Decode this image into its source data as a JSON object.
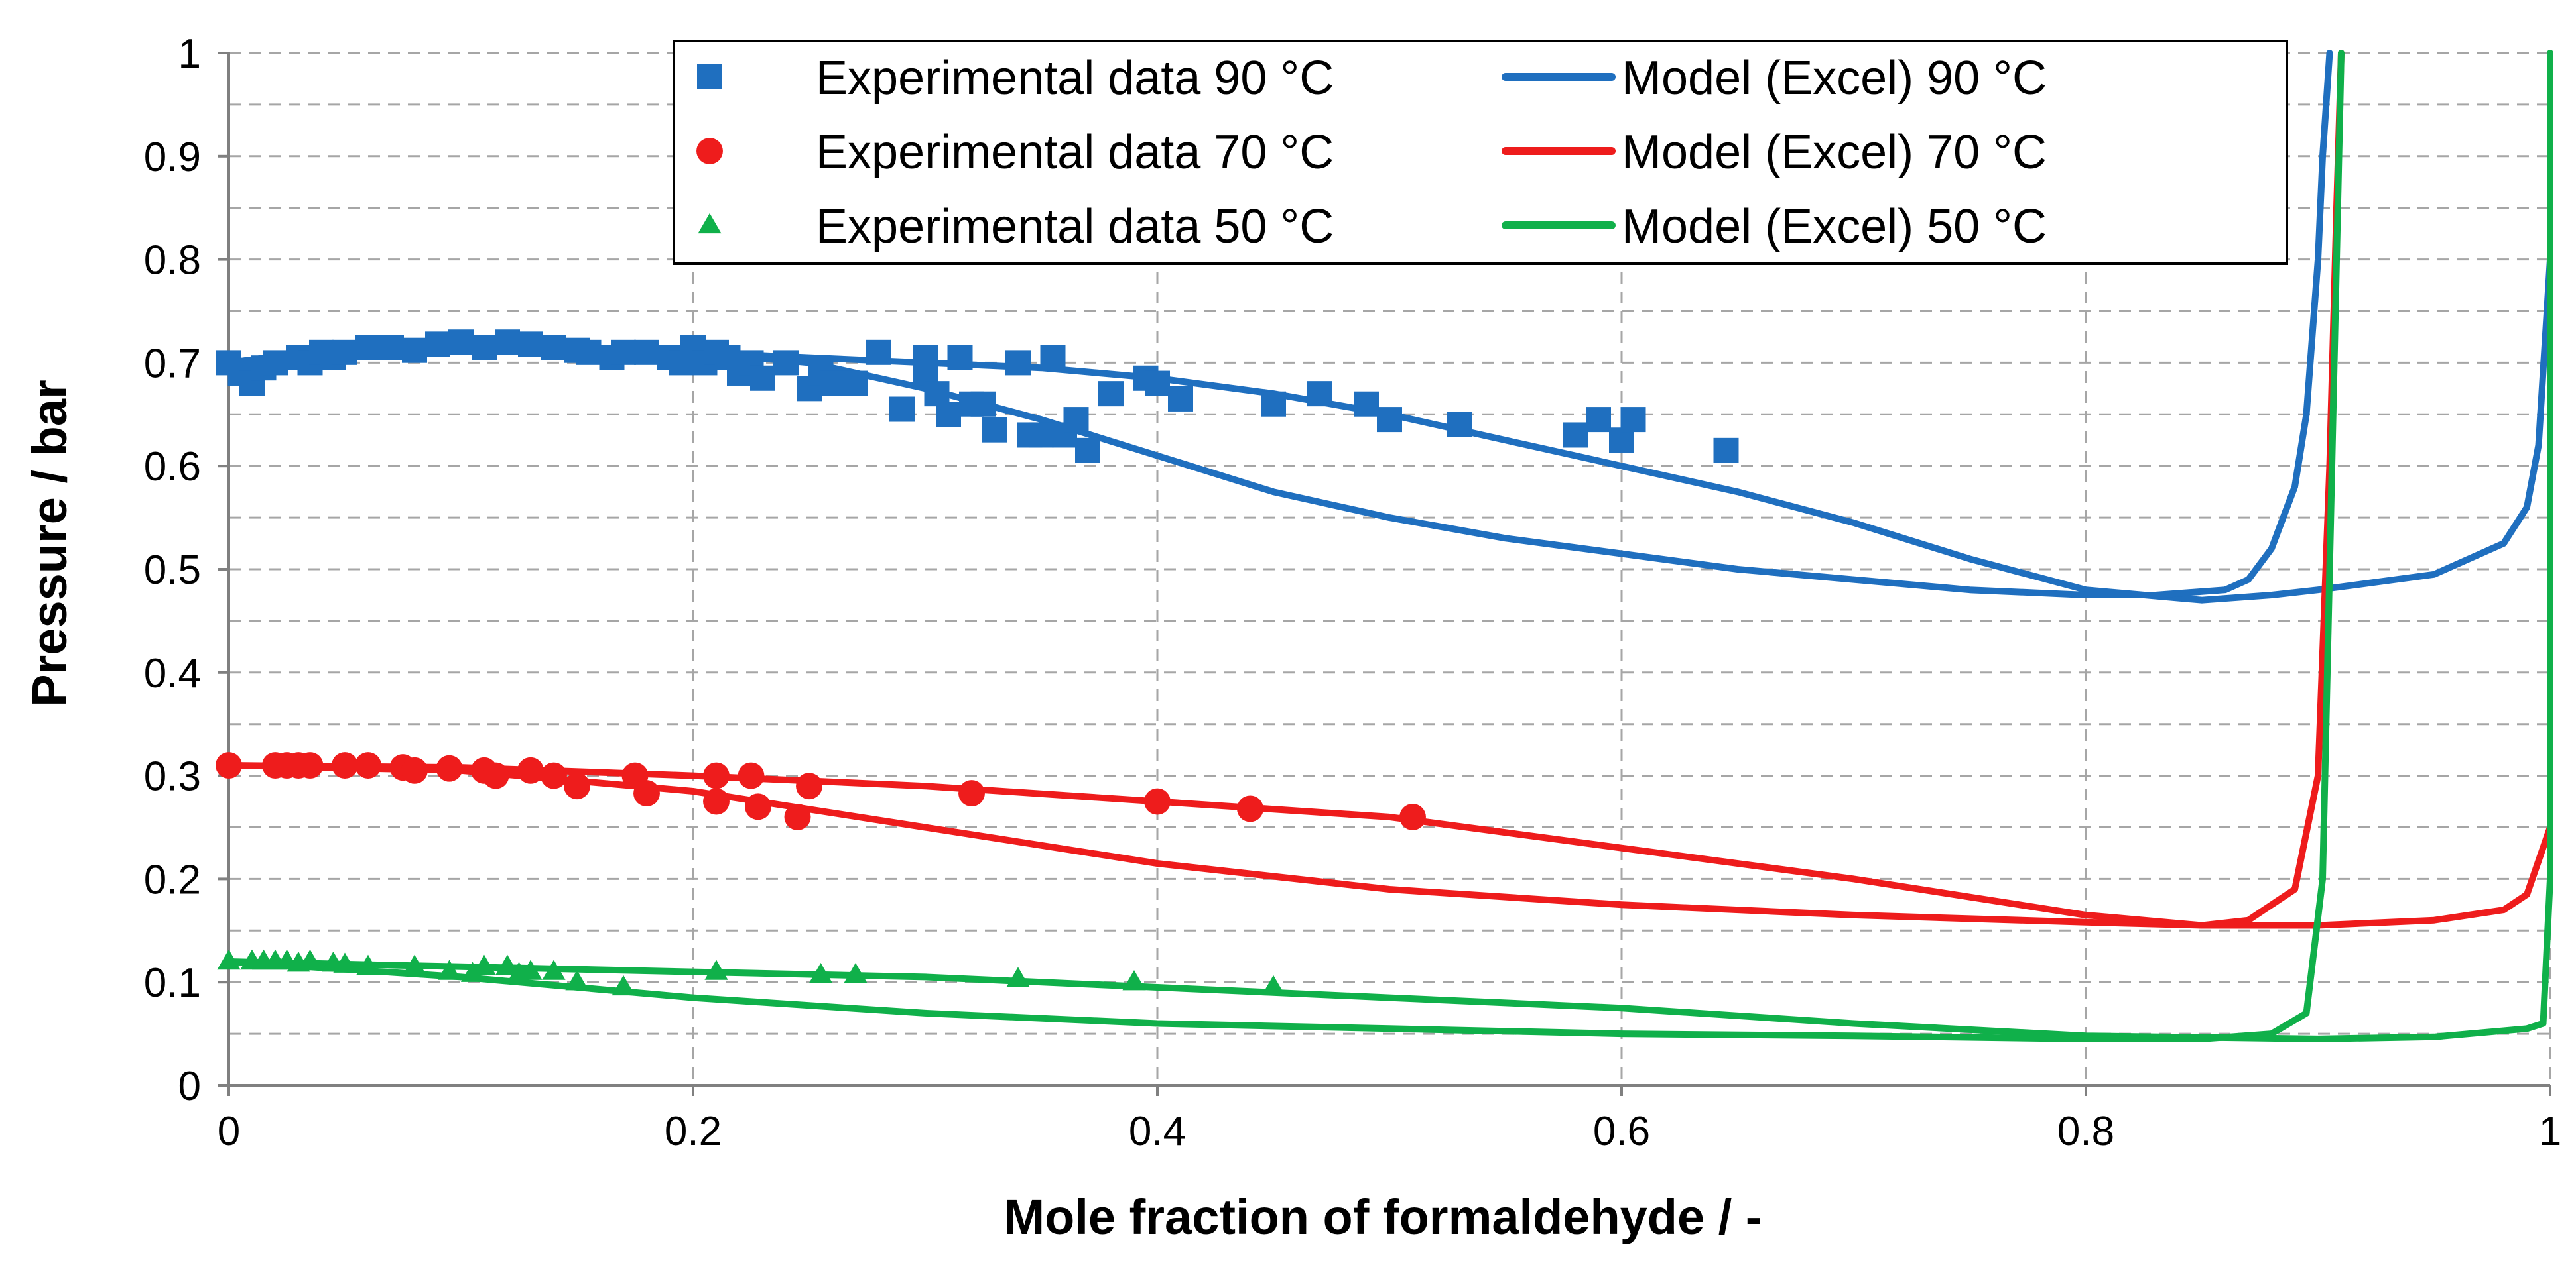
{
  "chart_data": {
    "type": "scatter",
    "title": "",
    "xlabel": "Mole fraction of formaldehyde / -",
    "ylabel": "Pressure  /  bar",
    "xlim": [
      0,
      1
    ],
    "ylim": [
      0,
      1
    ],
    "x_ticks": [
      0,
      0.2,
      0.4,
      0.6,
      0.8,
      1
    ],
    "x_tick_labels": [
      "0",
      "0.2",
      "0.4",
      "0.6",
      "0.8",
      "1"
    ],
    "y_ticks": [
      0,
      0.1,
      0.2,
      0.3,
      0.4,
      0.5,
      0.6,
      0.7,
      0.8,
      0.9,
      1
    ],
    "y_tick_labels": [
      "0",
      "0.1",
      "0.2",
      "0.3",
      "0.4",
      "0.5",
      "0.6",
      "0.7",
      "0.8",
      "0.9",
      "1"
    ],
    "grid": {
      "major": true,
      "minor_y": true,
      "style": "dashed"
    },
    "legend_position": "top-center",
    "colors": {
      "blue": "#1f6fbf",
      "red": "#ee1c1c",
      "green": "#10b04a",
      "grid": "#a6a6a6"
    },
    "series": [
      {
        "name": "Experimental data 90 °C",
        "kind": "scatter",
        "marker": "square",
        "color": "#1f6fbf",
        "x": [
          0.0,
          0.005,
          0.01,
          0.015,
          0.02,
          0.03,
          0.035,
          0.04,
          0.045,
          0.05,
          0.06,
          0.07,
          0.08,
          0.09,
          0.1,
          0.11,
          0.12,
          0.13,
          0.14,
          0.15,
          0.155,
          0.165,
          0.17,
          0.18,
          0.19,
          0.195,
          0.2,
          0.205,
          0.21,
          0.215,
          0.22,
          0.225,
          0.23,
          0.24,
          0.25,
          0.255,
          0.26,
          0.27,
          0.28,
          0.29,
          0.3,
          0.3,
          0.305,
          0.31,
          0.315,
          0.32,
          0.325,
          0.33,
          0.34,
          0.345,
          0.35,
          0.355,
          0.36,
          0.365,
          0.37,
          0.38,
          0.395,
          0.4,
          0.41,
          0.45,
          0.47,
          0.49,
          0.5,
          0.53,
          0.58,
          0.59,
          0.6,
          0.605,
          0.645
        ],
        "y": [
          0.7,
          0.69,
          0.68,
          0.695,
          0.7,
          0.705,
          0.7,
          0.71,
          0.705,
          0.71,
          0.715,
          0.715,
          0.712,
          0.718,
          0.72,
          0.715,
          0.72,
          0.718,
          0.715,
          0.712,
          0.71,
          0.705,
          0.71,
          0.71,
          0.705,
          0.7,
          0.715,
          0.7,
          0.71,
          0.705,
          0.69,
          0.7,
          0.685,
          0.7,
          0.675,
          0.69,
          0.68,
          0.68,
          0.71,
          0.655,
          0.69,
          0.705,
          0.67,
          0.65,
          0.705,
          0.66,
          0.66,
          0.635,
          0.7,
          0.63,
          0.63,
          0.705,
          0.63,
          0.645,
          0.615,
          0.67,
          0.685,
          0.68,
          0.665,
          0.66,
          0.67,
          0.66,
          0.645,
          0.64,
          0.63,
          0.645,
          0.625,
          0.645,
          0.615
        ]
      },
      {
        "name": "Experimental data 70 °C",
        "kind": "scatter",
        "marker": "circle",
        "color": "#ee1c1c",
        "x": [
          0.0,
          0.02,
          0.025,
          0.03,
          0.035,
          0.05,
          0.06,
          0.075,
          0.08,
          0.095,
          0.11,
          0.115,
          0.13,
          0.14,
          0.15,
          0.175,
          0.18,
          0.21,
          0.21,
          0.225,
          0.228,
          0.245,
          0.25,
          0.32,
          0.4,
          0.44,
          0.51
        ],
        "y": [
          0.31,
          0.31,
          0.31,
          0.31,
          0.31,
          0.31,
          0.31,
          0.308,
          0.305,
          0.307,
          0.305,
          0.3,
          0.305,
          0.3,
          0.29,
          0.3,
          0.283,
          0.3,
          0.275,
          0.3,
          0.27,
          0.26,
          0.29,
          0.283,
          0.275,
          0.268,
          0.26
        ]
      },
      {
        "name": "Experimental data 50 °C",
        "kind": "scatter",
        "marker": "triangle",
        "color": "#10b04a",
        "x": [
          0.0,
          0.01,
          0.015,
          0.02,
          0.025,
          0.03,
          0.035,
          0.045,
          0.05,
          0.06,
          0.08,
          0.095,
          0.105,
          0.11,
          0.12,
          0.125,
          0.13,
          0.14,
          0.15,
          0.17,
          0.21,
          0.255,
          0.27,
          0.34,
          0.39,
          0.45
        ],
        "y": [
          0.12,
          0.12,
          0.12,
          0.12,
          0.12,
          0.118,
          0.12,
          0.118,
          0.117,
          0.115,
          0.115,
          0.11,
          0.108,
          0.115,
          0.115,
          0.108,
          0.11,
          0.11,
          0.1,
          0.095,
          0.11,
          0.107,
          0.107,
          0.103,
          0.1,
          0.095
        ]
      },
      {
        "name": "Model (Excel) 90 °C",
        "kind": "line",
        "color": "#1f6fbf",
        "branches": [
          {
            "x": [
              0.0,
              0.05,
              0.1,
              0.15,
              0.2,
              0.25,
              0.3,
              0.35,
              0.4,
              0.45,
              0.5,
              0.55,
              0.6,
              0.65,
              0.7,
              0.75,
              0.8,
              0.85,
              0.88,
              0.9,
              0.95,
              0.98,
              0.99,
              0.995,
              1.0
            ],
            "y": [
              0.7,
              0.715,
              0.72,
              0.715,
              0.71,
              0.705,
              0.7,
              0.695,
              0.685,
              0.67,
              0.65,
              0.625,
              0.6,
              0.575,
              0.545,
              0.51,
              0.48,
              0.47,
              0.475,
              0.48,
              0.495,
              0.525,
              0.56,
              0.62,
              0.8
            ]
          },
          {
            "x": [
              0.0,
              0.05,
              0.1,
              0.15,
              0.2,
              0.25,
              0.3,
              0.35,
              0.4,
              0.45,
              0.5,
              0.55,
              0.6,
              0.65,
              0.7,
              0.75,
              0.8,
              0.83,
              0.86,
              0.87,
              0.88,
              0.89,
              0.895,
              0.9,
              0.902,
              0.905
            ],
            "y": [
              0.7,
              0.715,
              0.72,
              0.715,
              0.71,
              0.7,
              0.675,
              0.645,
              0.61,
              0.575,
              0.55,
              0.53,
              0.515,
              0.5,
              0.49,
              0.48,
              0.475,
              0.475,
              0.48,
              0.49,
              0.52,
              0.58,
              0.65,
              0.8,
              0.9,
              1.0
            ]
          }
        ]
      },
      {
        "name": "Model (Excel) 70 °C",
        "kind": "line",
        "color": "#ee1c1c",
        "branches": [
          {
            "x": [
              0.0,
              0.1,
              0.2,
              0.3,
              0.4,
              0.5,
              0.6,
              0.7,
              0.8,
              0.85,
              0.9,
              0.95,
              0.98,
              0.99,
              1.0
            ],
            "y": [
              0.31,
              0.308,
              0.3,
              0.29,
              0.275,
              0.26,
              0.23,
              0.2,
              0.165,
              0.155,
              0.155,
              0.16,
              0.17,
              0.185,
              0.25
            ]
          },
          {
            "x": [
              0.0,
              0.1,
              0.2,
              0.3,
              0.4,
              0.5,
              0.6,
              0.7,
              0.8,
              0.85,
              0.87,
              0.89,
              0.9,
              0.905,
              0.908,
              0.91
            ],
            "y": [
              0.31,
              0.305,
              0.285,
              0.25,
              0.215,
              0.19,
              0.175,
              0.165,
              0.158,
              0.155,
              0.16,
              0.19,
              0.3,
              0.6,
              0.85,
              1.0
            ]
          }
        ]
      },
      {
        "name": "Model (Excel) 50 °C",
        "kind": "line",
        "color": "#10b04a",
        "branches": [
          {
            "x": [
              0.0,
              0.1,
              0.2,
              0.3,
              0.4,
              0.5,
              0.6,
              0.7,
              0.8,
              0.9,
              0.95,
              0.99,
              0.997,
              1.0,
              1.0
            ],
            "y": [
              0.12,
              0.115,
              0.11,
              0.105,
              0.095,
              0.085,
              0.075,
              0.06,
              0.048,
              0.045,
              0.047,
              0.055,
              0.06,
              0.2,
              1.0
            ]
          },
          {
            "x": [
              0.0,
              0.1,
              0.2,
              0.3,
              0.4,
              0.5,
              0.6,
              0.7,
              0.8,
              0.85,
              0.88,
              0.895,
              0.902,
              0.905,
              0.908,
              0.91
            ],
            "y": [
              0.12,
              0.105,
              0.085,
              0.07,
              0.06,
              0.055,
              0.05,
              0.048,
              0.045,
              0.045,
              0.05,
              0.07,
              0.2,
              0.5,
              0.8,
              1.0
            ]
          }
        ]
      }
    ]
  }
}
